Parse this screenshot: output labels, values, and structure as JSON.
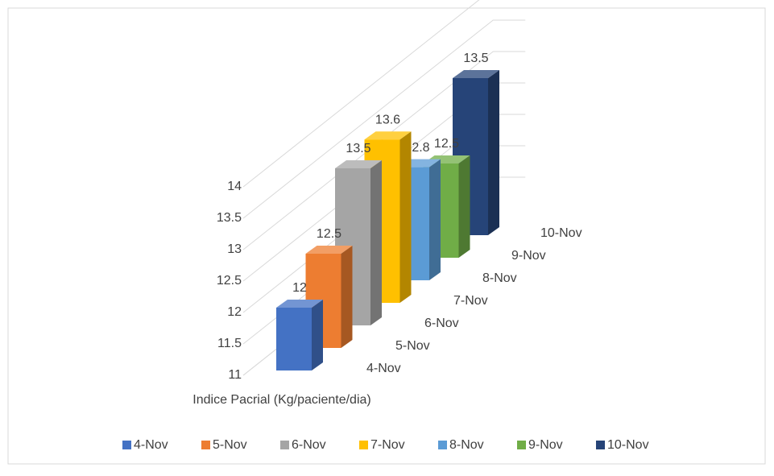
{
  "chart_data": {
    "type": "bar3d",
    "categories": [
      "Indice Pacrial (Kg/paciente/dia)"
    ],
    "series": [
      {
        "name": "4-Nov",
        "color": "#4472c4",
        "values": [
          12
        ]
      },
      {
        "name": "5-Nov",
        "color": "#ed7d31",
        "values": [
          12.5
        ]
      },
      {
        "name": "6-Nov",
        "color": "#a5a5a5",
        "values": [
          13.5
        ]
      },
      {
        "name": "7-Nov",
        "color": "#ffc000",
        "values": [
          13.6
        ]
      },
      {
        "name": "8-Nov",
        "color": "#5b9bd5",
        "values": [
          12.8
        ]
      },
      {
        "name": "9-Nov",
        "color": "#70ad47",
        "values": [
          12.5
        ]
      },
      {
        "name": "10-Nov",
        "color": "#264478",
        "values": [
          13.5
        ]
      }
    ],
    "ylim": [
      11,
      14
    ],
    "yticks": [
      11,
      11.5,
      12,
      12.5,
      13,
      13.5,
      14
    ],
    "grid": true,
    "legend": "bottom"
  }
}
